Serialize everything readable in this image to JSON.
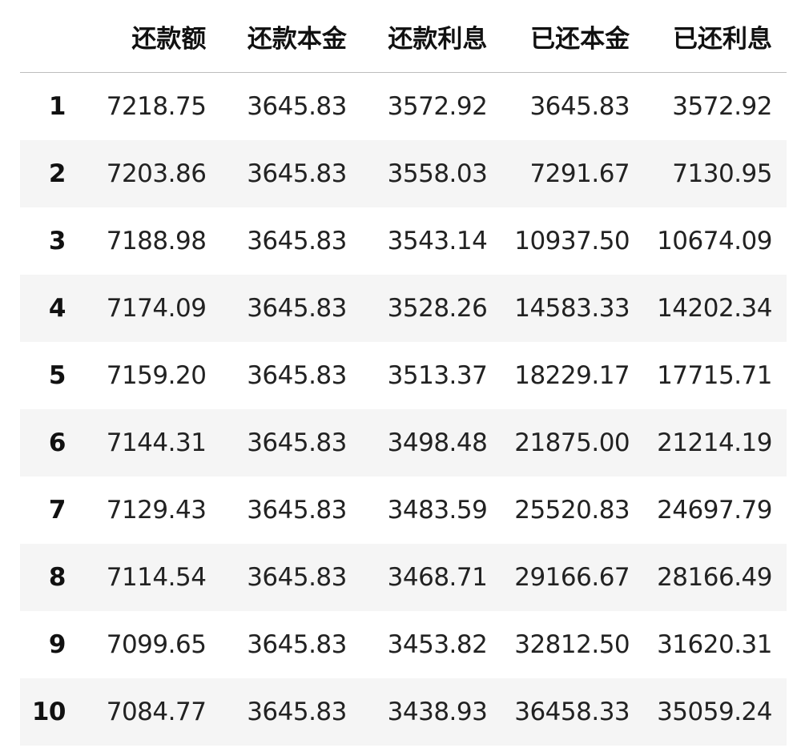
{
  "table": {
    "columns": [
      "还款额",
      "还款本金",
      "还款利息",
      "已还本金",
      "已还利息"
    ],
    "rows": [
      {
        "index": "1",
        "values": [
          "7218.75",
          "3645.83",
          "3572.92",
          "3645.83",
          "3572.92"
        ]
      },
      {
        "index": "2",
        "values": [
          "7203.86",
          "3645.83",
          "3558.03",
          "7291.67",
          "7130.95"
        ]
      },
      {
        "index": "3",
        "values": [
          "7188.98",
          "3645.83",
          "3543.14",
          "10937.50",
          "10674.09"
        ]
      },
      {
        "index": "4",
        "values": [
          "7174.09",
          "3645.83",
          "3528.26",
          "14583.33",
          "14202.34"
        ]
      },
      {
        "index": "5",
        "values": [
          "7159.20",
          "3645.83",
          "3513.37",
          "18229.17",
          "17715.71"
        ]
      },
      {
        "index": "6",
        "values": [
          "7144.31",
          "3645.83",
          "3498.48",
          "21875.00",
          "21214.19"
        ]
      },
      {
        "index": "7",
        "values": [
          "7129.43",
          "3645.83",
          "3483.59",
          "25520.83",
          "24697.79"
        ]
      },
      {
        "index": "8",
        "values": [
          "7114.54",
          "3645.83",
          "3468.71",
          "29166.67",
          "28166.49"
        ]
      },
      {
        "index": "9",
        "values": [
          "7099.65",
          "3645.83",
          "3453.82",
          "32812.50",
          "31620.31"
        ]
      },
      {
        "index": "10",
        "values": [
          "7084.77",
          "3645.83",
          "3438.93",
          "36458.33",
          "35059.24"
        ]
      }
    ],
    "stripe_color": "#f5f5f5",
    "header_rule_color": "#bdbdbd"
  }
}
